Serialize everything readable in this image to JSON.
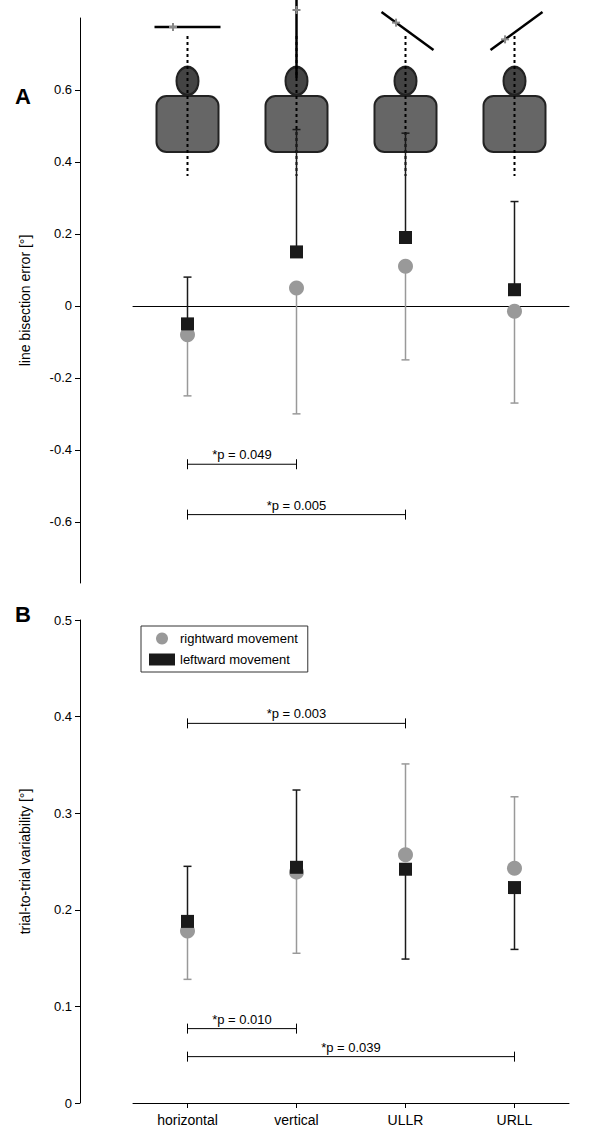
{
  "chart_data": [
    {
      "type": "scatter",
      "title": "A",
      "ylabel": "line bisection error [°]",
      "categories": [
        "horizontal",
        "vertical",
        "ULLR",
        "URLL"
      ],
      "ylim": [
        -0.77,
        0.8
      ],
      "yticks": [
        -0.6,
        -0.4,
        -0.2,
        0,
        0.2,
        0.4,
        0.6
      ],
      "grid": false,
      "tick_labels": "y",
      "series": [
        {
          "name": "rightward movement",
          "color": "#999999",
          "marker": "circle",
          "values": [
            -0.08,
            0.05,
            0.11,
            -0.015
          ],
          "error_low": [
            0.17,
            0.35,
            0.26,
            0.255
          ]
        },
        {
          "name": "leftward movement",
          "color": "#1a1a1a",
          "marker": "square",
          "values": [
            -0.05,
            0.15,
            0.19,
            0.045
          ],
          "error_high": [
            0.13,
            0.34,
            0.29,
            0.245
          ]
        }
      ],
      "annotations": [
        {
          "text": "*p = 0.049",
          "from": "horizontal",
          "to": "vertical",
          "y": -0.44
        },
        {
          "text": "*p = 0.005",
          "from": "horizontal",
          "to": "ULLR",
          "y": -0.58
        }
      ]
    },
    {
      "type": "scatter",
      "title": "B",
      "ylabel": "trial-to-trial variability [°]",
      "categories": [
        "horizontal",
        "vertical",
        "ULLR",
        "URLL"
      ],
      "ylim": [
        0,
        0.5
      ],
      "yticks": [
        0,
        0.1,
        0.2,
        0.3,
        0.4,
        0.5
      ],
      "grid": false,
      "legend": "upper left",
      "series": [
        {
          "name": "rightward movement",
          "color": "#999999",
          "marker": "circle",
          "values": [
            0.178,
            0.239,
            0.257,
            0.243
          ],
          "error_low": [
            0.05,
            0.084,
            null,
            null
          ],
          "error_high": [
            null,
            null,
            0.094,
            0.074
          ]
        },
        {
          "name": "leftward movement",
          "color": "#1a1a1a",
          "marker": "square",
          "values": [
            0.188,
            0.244,
            0.242,
            0.223
          ],
          "error_low": [
            null,
            null,
            0.093,
            0.064
          ],
          "error_high": [
            0.057,
            0.08,
            null,
            null
          ]
        }
      ],
      "annotations": [
        {
          "text": "*p = 0.003",
          "from": "horizontal",
          "to": "ULLR",
          "y": 0.393
        },
        {
          "text": "*p = 0.010",
          "from": "horizontal",
          "to": "vertical",
          "y": 0.077
        },
        {
          "text": "*p = 0.039",
          "from": "horizontal",
          "to": "URLL",
          "y": 0.048
        }
      ]
    }
  ]
}
